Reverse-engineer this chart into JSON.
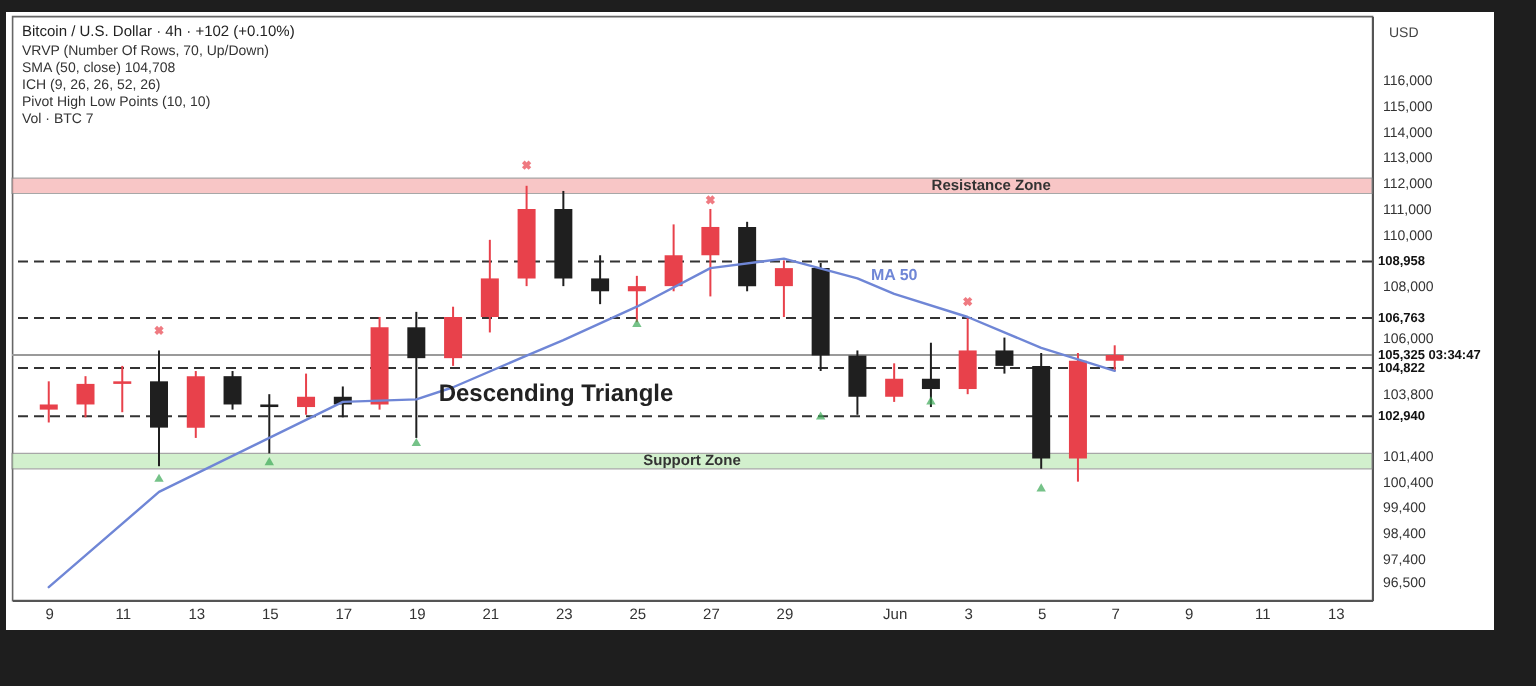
{
  "chart_data": {
    "type": "candlestick",
    "title": "Bitcoin / U.S. Dollar · 4h · +102 (+0.10%)",
    "subtitle": "VRVP (Number Of Rows, 70, Up/Down)\nSMA (50, close) 104,708\nICH (9, 26, 26, 52, 26)\nPivot High Low Points (10, 10)\nVol · BTC 7",
    "ylabel": "USD",
    "annotations": [
      "Descending Triangle"
    ],
    "xlim": [
      "--05-08",
      "--06-14"
    ],
    "xticks": [
      {
        "value": "--05-09",
        "label": "9"
      },
      {
        "value": "--05-11",
        "label": "11"
      },
      {
        "value": "--05-13",
        "label": "13"
      },
      {
        "value": "--05-15",
        "label": "15"
      },
      {
        "value": "--05-17",
        "label": "17"
      },
      {
        "value": "--05-19",
        "label": "19"
      },
      {
        "value": "--05-21",
        "label": "21"
      },
      {
        "value": "--05-23",
        "label": "23"
      },
      {
        "value": "--05-25",
        "label": "25"
      },
      {
        "value": "--05-27",
        "label": "27"
      },
      {
        "value": "--05-29",
        "label": "29"
      },
      {
        "value": "--06-01",
        "label": "Jun"
      },
      {
        "value": "--06-03",
        "label": "3"
      },
      {
        "value": "--06-05",
        "label": "5"
      },
      {
        "value": "--06-07",
        "label": "7"
      },
      {
        "value": "--06-09",
        "label": "9"
      },
      {
        "value": "--06-11",
        "label": "11"
      },
      {
        "value": "--06-13",
        "label": "13"
      }
    ],
    "ylim": [
      95800,
      118500
    ],
    "yticks": [
      {
        "value": 116000,
        "label": "116,000"
      },
      {
        "value": 115000,
        "label": "115,000"
      },
      {
        "value": 114000,
        "label": "114,000"
      },
      {
        "value": 113000,
        "label": "113,000"
      },
      {
        "value": 112000,
        "label": "112,000"
      },
      {
        "value": 111000,
        "label": "111,000"
      },
      {
        "value": 110000,
        "label": "110,000"
      },
      {
        "value": 108000,
        "label": "108,000"
      },
      {
        "value": 106000,
        "label": "106,000"
      },
      {
        "value": 103800,
        "label": "103,800"
      },
      {
        "value": 101400,
        "label": "101,400"
      },
      {
        "value": 100400,
        "label": "100,400"
      },
      {
        "value": 99400,
        "label": "99,400"
      },
      {
        "value": 98400,
        "label": "98,400"
      },
      {
        "value": 97400,
        "label": "97,400"
      },
      {
        "value": 96500,
        "label": "96,500"
      }
    ],
    "bands": [
      {
        "axis": "y",
        "from": 111600,
        "to": 112200,
        "label": "Resistance Zone",
        "color": "#f6b3b3"
      },
      {
        "axis": "y",
        "from": 100900,
        "to": 101500,
        "label": "Support Zone",
        "color": "#c4ebbd"
      }
    ],
    "ref_lines": [
      {
        "axis": "y",
        "value": 108958,
        "label": "108,958",
        "color": "#333333",
        "line_style": "dashed"
      },
      {
        "axis": "y",
        "value": 106763,
        "label": "106,763",
        "color": "#333333",
        "line_style": "dashed"
      },
      {
        "axis": "y",
        "value": 105325,
        "label": "105,325 03:34:47",
        "color": "#9a9a9a",
        "line_style": "solid"
      },
      {
        "axis": "y",
        "value": 104822,
        "label": "104,822",
        "color": "#333333",
        "line_style": "dashed"
      },
      {
        "axis": "y",
        "value": 102940,
        "label": "102,940",
        "color": "#333333",
        "line_style": "dashed"
      }
    ],
    "series": [
      {
        "x": [
          "--05-09",
          "--05-10",
          "--05-11",
          "--05-12",
          "--05-13",
          "--05-14",
          "--05-15",
          "--05-16",
          "--05-17",
          "--05-18",
          "--05-19",
          "--05-20",
          "--05-21",
          "--05-22",
          "--05-23",
          "--05-24",
          "--05-25",
          "--05-26",
          "--05-27",
          "--05-28",
          "--05-29",
          "--05-30",
          "--05-31",
          "--06-01",
          "--06-02",
          "--06-03",
          "--06-04",
          "--06-05",
          "--06-06",
          "--06-07"
        ],
        "ohlc": [
          [
            103200,
            104300,
            102700,
            103400
          ],
          [
            103400,
            104500,
            102900,
            104200
          ],
          [
            104200,
            104900,
            103100,
            104300
          ],
          [
            104300,
            105500,
            101000,
            102500
          ],
          [
            102500,
            104700,
            102100,
            104500
          ],
          [
            104500,
            104700,
            103200,
            103400
          ],
          [
            103400,
            103800,
            101500,
            103300
          ],
          [
            103300,
            104600,
            103000,
            103700
          ],
          [
            103700,
            104100,
            102900,
            103400
          ],
          [
            103400,
            106800,
            103200,
            106400
          ],
          [
            106400,
            107000,
            102100,
            105200
          ],
          [
            105200,
            107200,
            104900,
            106800
          ],
          [
            106800,
            109800,
            106200,
            108300
          ],
          [
            108300,
            111900,
            108000,
            111000
          ],
          [
            111000,
            111700,
            108000,
            108300
          ],
          [
            108300,
            109200,
            107300,
            107800
          ],
          [
            107800,
            108400,
            106600,
            108000
          ],
          [
            108000,
            110400,
            107800,
            109200
          ],
          [
            109200,
            111000,
            107600,
            110300
          ],
          [
            110300,
            110500,
            107800,
            108000
          ],
          [
            108000,
            109000,
            106800,
            108700
          ],
          [
            108700,
            108900,
            104700,
            105300
          ],
          [
            105300,
            105500,
            103000,
            103700
          ],
          [
            103700,
            105000,
            103500,
            104400
          ],
          [
            104400,
            105800,
            103300,
            104000
          ],
          [
            104000,
            106800,
            103800,
            105500
          ],
          [
            105500,
            106000,
            104600,
            104900
          ],
          [
            104900,
            105400,
            100900,
            101300
          ],
          [
            101300,
            105400,
            100400,
            105100
          ],
          [
            105100,
            105700,
            104700,
            105325
          ]
        ],
        "colors": [
          "#e8414b",
          "#e8414b",
          "#e8414b",
          "#1f1f1f",
          "#e8414b",
          "#1f1f1f",
          "#1f1f1f",
          "#e8414b",
          "#1f1f1f",
          "#e8414b",
          "#1f1f1f",
          "#e8414b",
          "#e8414b",
          "#e8414b",
          "#1f1f1f",
          "#1f1f1f",
          "#e8414b",
          "#e8414b",
          "#e8414b",
          "#1f1f1f",
          "#e8414b",
          "#1f1f1f",
          "#1f1f1f",
          "#e8414b",
          "#1f1f1f",
          "#e8414b",
          "#1f1f1f",
          "#1f1f1f",
          "#e8414b",
          "#e8414b"
        ]
      },
      {
        "type": "line",
        "name": "MA 50",
        "color": "#6f86d6",
        "line_style": "solid",
        "x": [
          "--05-09",
          "--05-12",
          "--05-15",
          "--05-17",
          "--05-19",
          "--05-20",
          "--05-22",
          "--05-23",
          "--05-25",
          "--05-27",
          "--05-29",
          "--05-31",
          "--06-01",
          "--06-03",
          "--06-05",
          "--06-07"
        ],
        "values": [
          96300,
          100000,
          102100,
          103500,
          103600,
          104070,
          105300,
          105900,
          107200,
          108700,
          109070,
          108300,
          107700,
          106800,
          105600,
          104708
        ]
      },
      {
        "type": "scatter",
        "color": "#e8414b",
        "marker": "cross",
        "x": [
          "--05-12",
          "--05-22",
          "--05-27",
          "--06-03"
        ],
        "values": [
          106280,
          112700,
          111350,
          107400
        ]
      },
      {
        "type": "scatter",
        "color": "#3aa856",
        "marker": "triangle",
        "x": [
          "--05-12",
          "--05-15",
          "--05-19",
          "--05-25",
          "--05-30",
          "--06-02",
          "--06-05"
        ],
        "values": [
          100550,
          101200,
          101940,
          106570,
          102970,
          103560,
          100180
        ]
      }
    ]
  }
}
